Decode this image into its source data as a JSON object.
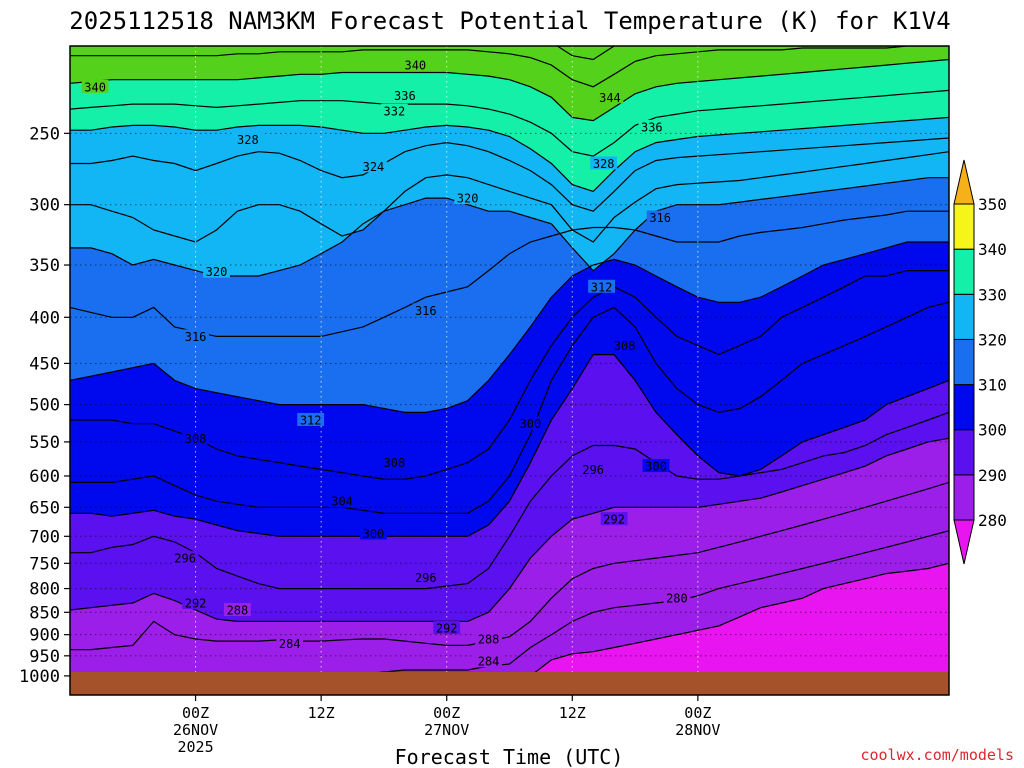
{
  "chart_data": {
    "type": "time-height cross section (filled contour)",
    "title": "2025112518 NAM3KM Forecast Potential Temperature (K) for K1V4",
    "xlabel": "Forecast Time (UTC)",
    "credit": "coolwx.com/models",
    "y_axis": {
      "ticks": [
        250,
        300,
        350,
        400,
        450,
        500,
        550,
        600,
        650,
        700,
        750,
        800,
        850,
        900,
        950,
        1000
      ],
      "range": [
        200,
        1050
      ],
      "scale": "log-pressure, inverted"
    },
    "x_axis": {
      "range_hours": [
        -6,
        36
      ],
      "ticks": [
        {
          "hour": 0,
          "lines": [
            "00Z",
            "26NOV",
            "2025"
          ]
        },
        {
          "hour": 6,
          "lines": [
            "12Z"
          ]
        },
        {
          "hour": 12,
          "lines": [
            "00Z",
            "27NOV"
          ]
        },
        {
          "hour": 18,
          "lines": [
            "12Z"
          ]
        },
        {
          "hour": 24,
          "lines": [
            "00Z",
            "28NOV"
          ]
        }
      ]
    },
    "colorbar": {
      "levels": [
        280,
        290,
        300,
        310,
        320,
        330,
        340,
        350
      ],
      "band_colors": [
        "#9b1fe8",
        "#5a10ef",
        "#0008ee",
        "#1a6ff0",
        "#12b6f5",
        "#14f0a8",
        "#54d11b",
        "#f5f51a"
      ],
      "below_color": "#e815f0",
      "above_color": "#f5b01a"
    },
    "contour_interval_K": 4,
    "surface_color": "#a5522b",
    "isentropes": [
      {
        "theta": 280,
        "p": [
          1050,
          1050,
          1050,
          1050,
          1050,
          1050,
          1050,
          1050,
          1050,
          1050,
          1050,
          1050,
          1050,
          1050,
          1050,
          1050,
          1050,
          1050,
          1050,
          1050,
          1050,
          1050,
          1000,
          960,
          945,
          940,
          930,
          920,
          910,
          900,
          890,
          880,
          860,
          840,
          830,
          820,
          800,
          790,
          780,
          770,
          765,
          760,
          750
        ]
      },
      {
        "theta": 284,
        "p": [
          1010,
          1010,
          1010,
          1010,
          1010,
          1010,
          1010,
          1010,
          1010,
          1010,
          1010,
          1010,
          1005,
          1000,
          995,
          990,
          985,
          985,
          985,
          985,
          975,
          970,
          930,
          900,
          870,
          850,
          840,
          835,
          830,
          825,
          815,
          800,
          790,
          780,
          770,
          760,
          750,
          740,
          730,
          720,
          710,
          700,
          690
        ]
      },
      {
        "theta": 288,
        "p": [
          935,
          935,
          930,
          925,
          870,
          900,
          910,
          915,
          915,
          915,
          912,
          915,
          915,
          912,
          910,
          910,
          915,
          920,
          925,
          925,
          915,
          905,
          870,
          820,
          780,
          760,
          750,
          745,
          740,
          735,
          730,
          720,
          710,
          700,
          690,
          680,
          670,
          660,
          650,
          640,
          630,
          620,
          610
        ]
      },
      {
        "theta": 292,
        "p": [
          845,
          840,
          835,
          830,
          810,
          825,
          845,
          865,
          870,
          870,
          870,
          870,
          870,
          870,
          870,
          870,
          870,
          870,
          870,
          870,
          850,
          800,
          740,
          700,
          670,
          660,
          650,
          650,
          650,
          650,
          650,
          645,
          640,
          635,
          625,
          615,
          605,
          595,
          585,
          570,
          560,
          550,
          545
        ]
      },
      {
        "theta": 296,
        "p": [
          730,
          730,
          720,
          715,
          700,
          710,
          730,
          760,
          775,
          790,
          800,
          800,
          800,
          800,
          800,
          800,
          800,
          800,
          795,
          790,
          760,
          700,
          640,
          600,
          570,
          555,
          555,
          560,
          580,
          600,
          605,
          605,
          600,
          595,
          590,
          580,
          570,
          565,
          555,
          540,
          530,
          520,
          510
        ]
      },
      {
        "theta": 300,
        "p": [
          660,
          660,
          665,
          660,
          655,
          665,
          670,
          680,
          690,
          695,
          700,
          700,
          700,
          700,
          700,
          700,
          700,
          700,
          700,
          700,
          680,
          640,
          580,
          520,
          480,
          440,
          440,
          470,
          510,
          540,
          570,
          595,
          600,
          590,
          570,
          550,
          540,
          530,
          520,
          500,
          490,
          480,
          470
        ]
      },
      {
        "theta": 304,
        "p": [
          610,
          610,
          610,
          605,
          600,
          615,
          630,
          640,
          645,
          650,
          650,
          650,
          650,
          650,
          655,
          660,
          660,
          660,
          660,
          660,
          640,
          600,
          540,
          470,
          430,
          400,
          390,
          410,
          450,
          480,
          500,
          510,
          505,
          490,
          470,
          450,
          440,
          430,
          420,
          410,
          400,
          390,
          385
        ]
      },
      {
        "theta": 308,
        "p": [
          520,
          520,
          520,
          525,
          525,
          535,
          545,
          560,
          570,
          575,
          580,
          585,
          590,
          595,
          600,
          605,
          605,
          600,
          590,
          580,
          560,
          520,
          470,
          430,
          400,
          380,
          370,
          380,
          400,
          420,
          430,
          440,
          430,
          420,
          400,
          390,
          380,
          370,
          360,
          360,
          355,
          355,
          355
        ]
      },
      {
        "theta": 312,
        "p": [
          470,
          465,
          460,
          455,
          450,
          470,
          480,
          485,
          490,
          495,
          500,
          500,
          500,
          500,
          500,
          505,
          510,
          510,
          505,
          495,
          470,
          440,
          410,
          380,
          360,
          350,
          345,
          350,
          360,
          370,
          380,
          385,
          385,
          380,
          370,
          360,
          350,
          345,
          340,
          335,
          330,
          330,
          330
        ]
      },
      {
        "theta": 316,
        "p": [
          390,
          395,
          400,
          400,
          390,
          410,
          415,
          420,
          420,
          420,
          420,
          420,
          420,
          415,
          410,
          400,
          390,
          380,
          375,
          370,
          355,
          340,
          330,
          325,
          320,
          318,
          318,
          320,
          325,
          330,
          330,
          330,
          325,
          322,
          320,
          318,
          315,
          312,
          310,
          308,
          305,
          305,
          305
        ]
      },
      {
        "theta": 320,
        "p": [
          335,
          335,
          340,
          350,
          345,
          350,
          355,
          360,
          360,
          360,
          355,
          350,
          340,
          330,
          315,
          305,
          300,
          295,
          295,
          300,
          305,
          305,
          310,
          315,
          335,
          355,
          340,
          320,
          305,
          300,
          300,
          300,
          298,
          296,
          294,
          292,
          290,
          288,
          286,
          284,
          282,
          280,
          280
        ]
      },
      {
        "theta": 324,
        "p": [
          300,
          300,
          305,
          310,
          320,
          325,
          330,
          320,
          305,
          300,
          300,
          305,
          315,
          325,
          320,
          305,
          290,
          280,
          278,
          280,
          285,
          290,
          295,
          300,
          320,
          330,
          310,
          298,
          288,
          285,
          284,
          283,
          282,
          280,
          278,
          276,
          274,
          272,
          270,
          268,
          266,
          264,
          262
        ]
      },
      {
        "theta": 328,
        "p": [
          270,
          270,
          268,
          265,
          268,
          270,
          275,
          270,
          265,
          262,
          263,
          268,
          275,
          280,
          278,
          270,
          262,
          258,
          256,
          258,
          262,
          268,
          275,
          285,
          300,
          305,
          290,
          275,
          268,
          266,
          265,
          264,
          263,
          262,
          261,
          260,
          259,
          258,
          257,
          256,
          255,
          254,
          253
        ]
      },
      {
        "theta": 332,
        "p": [
          248,
          248,
          246,
          245,
          245,
          246,
          248,
          248,
          246,
          245,
          245,
          245,
          246,
          248,
          250,
          250,
          248,
          246,
          245,
          246,
          248,
          252,
          260,
          270,
          285,
          290,
          275,
          262,
          256,
          254,
          252,
          251,
          250,
          249,
          248,
          247,
          246,
          245,
          244,
          243,
          242,
          241,
          240
        ]
      },
      {
        "theta": 336,
        "p": [
          235,
          234,
          233,
          232,
          232,
          232,
          233,
          234,
          233,
          232,
          231,
          230,
          230,
          230,
          231,
          232,
          232,
          232,
          232,
          233,
          235,
          238,
          243,
          250,
          262,
          265,
          256,
          245,
          240,
          238,
          236,
          235,
          234,
          233,
          232,
          231,
          230,
          229,
          228,
          227,
          226,
          225,
          224
        ]
      },
      {
        "theta": 340,
        "p": [
          220,
          219,
          218,
          218,
          218,
          218,
          218,
          218,
          218,
          217,
          216,
          215,
          215,
          214,
          214,
          214,
          214,
          214,
          214,
          215,
          216,
          218,
          222,
          228,
          240,
          242,
          234,
          226,
          222,
          220,
          219,
          218,
          217,
          216,
          215,
          214,
          213,
          212,
          211,
          210,
          209,
          208,
          207
        ]
      },
      {
        "theta": 344,
        "p": [
          205,
          205,
          205,
          205,
          205,
          205,
          205,
          205,
          204,
          204,
          203,
          203,
          203,
          203,
          202,
          202,
          202,
          202,
          202,
          202,
          203,
          204,
          206,
          210,
          218,
          222,
          215,
          208,
          205,
          204,
          203,
          202,
          202,
          202,
          202,
          201,
          201,
          201,
          201,
          201,
          200,
          200,
          200
        ]
      },
      {
        "theta": 348,
        "p": [
          198,
          198,
          198,
          198,
          198,
          198,
          198,
          198,
          198,
          198,
          198,
          198,
          198,
          198,
          198,
          198,
          198,
          198,
          198,
          198,
          198,
          198,
          198,
          198,
          205,
          207,
          200,
          198,
          198,
          198,
          198,
          198,
          198,
          198,
          198,
          198,
          198,
          198,
          198,
          198,
          198,
          198,
          198
        ]
      }
    ],
    "contour_labels": [
      {
        "text": "340",
        "hour": -4.8,
        "p": 222
      },
      {
        "text": "340",
        "hour": 10.5,
        "p": 210
      },
      {
        "text": "336",
        "hour": 10.0,
        "p": 227
      },
      {
        "text": "332",
        "hour": 9.5,
        "p": 236
      },
      {
        "text": "344",
        "hour": 19.8,
        "p": 228
      },
      {
        "text": "336",
        "hour": 21.8,
        "p": 246
      },
      {
        "text": "328",
        "hour": 2.5,
        "p": 254
      },
      {
        "text": "324",
        "hour": 8.5,
        "p": 272
      },
      {
        "text": "328",
        "hour": 19.5,
        "p": 270
      },
      {
        "text": "320",
        "hour": 13.0,
        "p": 295
      },
      {
        "text": "316",
        "hour": 22.2,
        "p": 310
      },
      {
        "text": "320",
        "hour": 1.0,
        "p": 356
      },
      {
        "text": "312",
        "hour": 19.4,
        "p": 370
      },
      {
        "text": "316",
        "hour": 11.0,
        "p": 393
      },
      {
        "text": "316",
        "hour": 0.0,
        "p": 420
      },
      {
        "text": "308",
        "hour": 20.5,
        "p": 430
      },
      {
        "text": "312",
        "hour": 5.5,
        "p": 520
      },
      {
        "text": "308",
        "hour": 0.0,
        "p": 545
      },
      {
        "text": "300",
        "hour": 16.0,
        "p": 525
      },
      {
        "text": "308",
        "hour": 9.5,
        "p": 580
      },
      {
        "text": "296",
        "hour": 19.0,
        "p": 590
      },
      {
        "text": "300",
        "hour": 22.0,
        "p": 585
      },
      {
        "text": "304",
        "hour": 7.0,
        "p": 640
      },
      {
        "text": "292",
        "hour": 20.0,
        "p": 670
      },
      {
        "text": "300",
        "hour": 8.5,
        "p": 695
      },
      {
        "text": "296",
        "hour": -0.5,
        "p": 740
      },
      {
        "text": "296",
        "hour": 11.0,
        "p": 778
      },
      {
        "text": "292",
        "hour": 0.0,
        "p": 830
      },
      {
        "text": "288",
        "hour": 2.0,
        "p": 845
      },
      {
        "text": "292",
        "hour": 12.0,
        "p": 885
      },
      {
        "text": "284",
        "hour": 4.5,
        "p": 920
      },
      {
        "text": "288",
        "hour": 14.0,
        "p": 910
      },
      {
        "text": "284",
        "hour": 14.0,
        "p": 963
      },
      {
        "text": "280",
        "hour": 23.0,
        "p": 820
      }
    ]
  }
}
